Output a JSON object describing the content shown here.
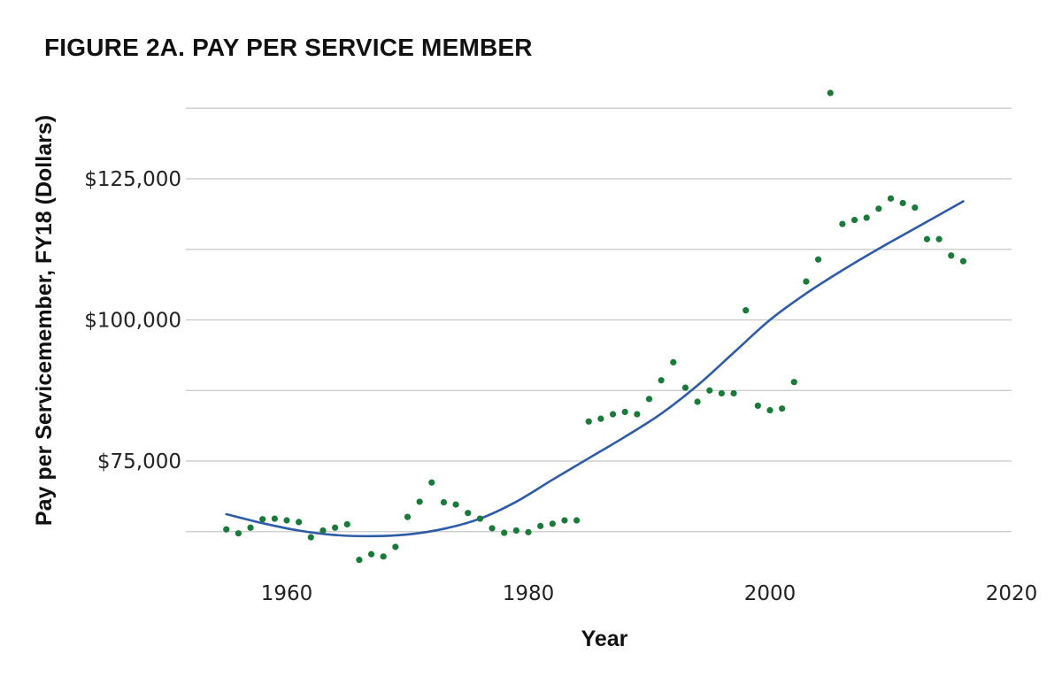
{
  "chart_data": {
    "type": "scatter",
    "title": "FIGURE 2A. PAY PER SERVICE MEMBER",
    "xlabel": "Year",
    "ylabel": "Pay per Servicemember, FY18 (Dollars)",
    "xlim": [
      1952,
      2020
    ],
    "ylim": [
      56000,
      141000
    ],
    "x_ticks": [
      1960,
      1980,
      2000,
      2020
    ],
    "x_tick_labels": [
      "1960",
      "1980",
      "2000",
      "2020"
    ],
    "y_ticks": [
      75000,
      100000,
      125000
    ],
    "y_tick_labels": [
      "$75,000",
      "$100,000",
      "$125,000"
    ],
    "y_gridlines": [
      62500,
      75000,
      87500,
      100000,
      112500,
      125000,
      137500
    ],
    "grid": true,
    "legend": "none",
    "colors": {
      "points": "#1a7a3a",
      "trend": "#2e5ba8",
      "grid": "#c8c8c8"
    },
    "series": [
      {
        "kind": "points",
        "x": [
          1955,
          1956,
          1957,
          1958,
          1959,
          1960,
          1961,
          1962,
          1963,
          1964,
          1965,
          1966,
          1967,
          1968,
          1969,
          1970,
          1971,
          1972,
          1973,
          1974,
          1975,
          1976,
          1977,
          1978,
          1979,
          1980,
          1981,
          1982,
          1983,
          1984,
          1985,
          1986,
          1987,
          1988,
          1989,
          1990,
          1991,
          1992,
          1993,
          1994,
          1995,
          1996,
          1997,
          1998,
          1999,
          2000,
          2001,
          2002,
          2003,
          2004,
          2005,
          2006,
          2007,
          2008,
          2009,
          2010,
          2011,
          2012,
          2013,
          2014,
          2015,
          2016
        ],
        "y": [
          62900,
          62200,
          63200,
          64700,
          64800,
          64500,
          64200,
          61500,
          62700,
          63200,
          63800,
          57500,
          58500,
          58100,
          59800,
          65100,
          67800,
          71200,
          67700,
          67300,
          65800,
          64800,
          63100,
          62300,
          62700,
          62400,
          63500,
          63900,
          64500,
          64500,
          82000,
          82500,
          83300,
          83700,
          83300,
          86000,
          89300,
          92500,
          88000,
          85500,
          87500,
          87000,
          87000,
          101700,
          84800,
          84000,
          84300,
          89000,
          106800,
          110700,
          140200,
          117000,
          117700,
          118100,
          119700,
          121500,
          120700,
          119900,
          114300,
          114300,
          111400,
          110400
        ]
      },
      {
        "kind": "trend",
        "x": [
          1955,
          1958,
          1961,
          1964,
          1967,
          1970,
          1973,
          1976,
          1979,
          1982,
          1985,
          1988,
          1991,
          1994,
          1997,
          2000,
          2003,
          2006,
          2009,
          2012,
          2016
        ],
        "y": [
          65600,
          64000,
          62700,
          61900,
          61700,
          62000,
          63000,
          64800,
          67800,
          71700,
          75500,
          79300,
          83400,
          88400,
          94200,
          100000,
          104700,
          108800,
          112600,
          116200,
          121000
        ]
      }
    ]
  }
}
